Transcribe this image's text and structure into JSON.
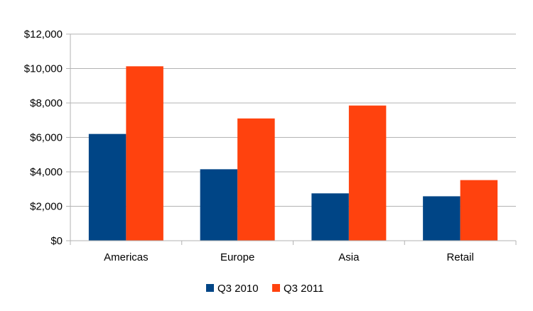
{
  "chart_data": {
    "type": "bar",
    "categories": [
      "Americas",
      "Europe",
      "Asia",
      "Retail"
    ],
    "series": [
      {
        "name": "Q3 2010",
        "color": "#004586",
        "values": [
          6200,
          4150,
          2750,
          2580
        ]
      },
      {
        "name": "Q3 2011",
        "color": "#ff420e",
        "values": [
          10130,
          7100,
          7850,
          3520
        ]
      }
    ],
    "y_ticks": [
      "$0",
      "$2,000",
      "$4,000",
      "$6,000",
      "$8,000",
      "$10,000",
      "$12,000"
    ],
    "ylim": [
      0,
      12000
    ],
    "y_step": 2000,
    "grid": true,
    "legend_position": "bottom",
    "colors": {
      "grid": "#b3b3b3",
      "axis": "#b3b3b3"
    }
  }
}
